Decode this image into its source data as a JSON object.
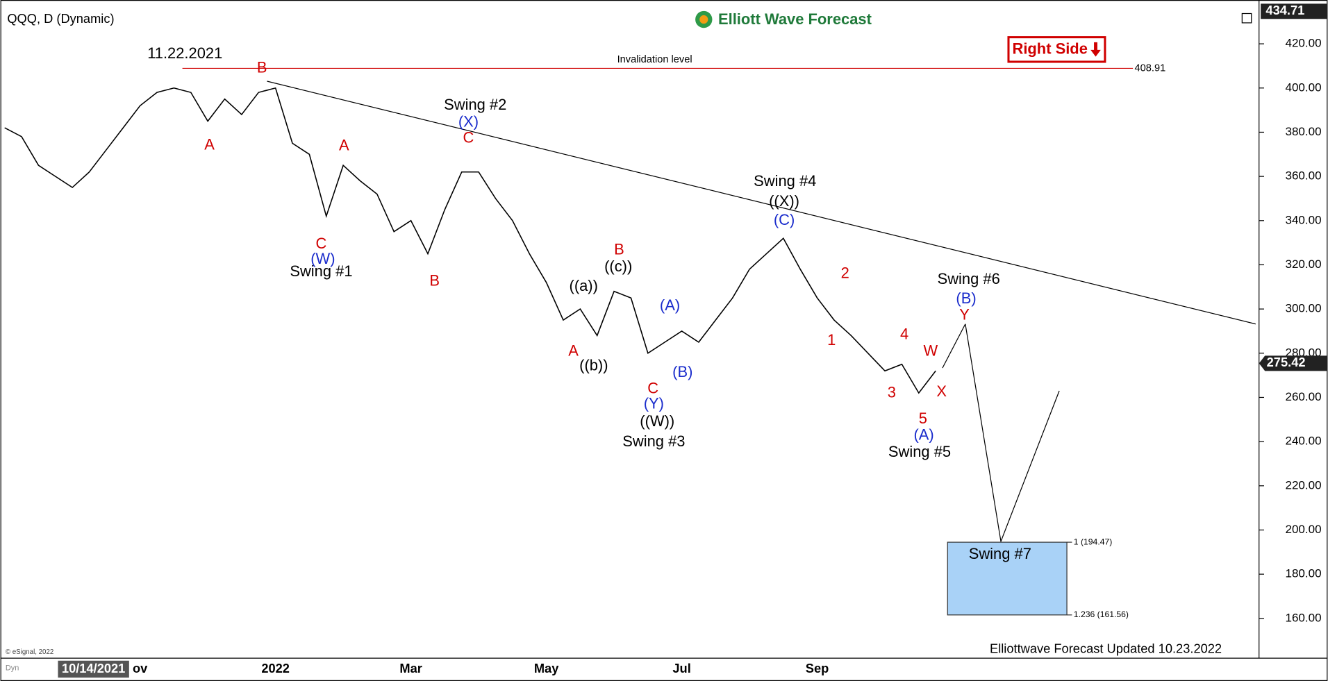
{
  "chart_data": {
    "type": "line",
    "title": "QQQ, D (Dynamic)",
    "brand": "Elliott Wave Forecast",
    "badge": "Right Side",
    "footer": "Elliottwave Forecast Updated 10.23.2022",
    "copyright": "© eSignal, 2022",
    "cursor_date": "10/14/2021",
    "corner_label": "Dyn",
    "top_price": {
      "value": 434.71,
      "label": "434.71"
    },
    "last_price": 275.42,
    "color": "#000000",
    "categories": [
      null,
      null,
      null,
      null,
      null,
      null,
      null,
      null,
      "ov",
      null,
      null,
      null,
      null,
      null,
      null,
      null,
      "2022",
      null,
      null,
      null,
      null,
      null,
      null,
      null,
      "Mar",
      null,
      null,
      null,
      null,
      null,
      null,
      null,
      "May",
      null,
      null,
      null,
      null,
      null,
      null,
      null,
      "Jul",
      null,
      null,
      null,
      null,
      null,
      null,
      null,
      "Sep",
      null,
      null,
      null,
      null,
      null,
      null,
      null
    ],
    "values": [
      382,
      378,
      365,
      360,
      355,
      362,
      372,
      382,
      392,
      398,
      400,
      398,
      385,
      395,
      388,
      398,
      400,
      375,
      370,
      342,
      365,
      358,
      352,
      335,
      340,
      325,
      345,
      362,
      362,
      350,
      340,
      325,
      312,
      295,
      300,
      288,
      308,
      305,
      280,
      285,
      290,
      285,
      295,
      305,
      318,
      325,
      332,
      318,
      305,
      295,
      288,
      280,
      272,
      275,
      262,
      272
    ],
    "ylim": [
      142,
      436
    ],
    "yticks": [
      {
        "value": 160,
        "label": "160.00"
      },
      {
        "value": 180,
        "label": "180.00"
      },
      {
        "value": 200,
        "label": "200.00"
      },
      {
        "value": 220,
        "label": "220.00"
      },
      {
        "value": 240,
        "label": "240.00"
      },
      {
        "value": 260,
        "label": "260.00"
      },
      {
        "value": 280,
        "label": "280.00"
      },
      {
        "value": 300,
        "label": "300.00"
      },
      {
        "value": 320,
        "label": "320.00"
      },
      {
        "value": 340,
        "label": "340.00"
      },
      {
        "value": 360,
        "label": "360.00"
      },
      {
        "value": 380,
        "label": "380.00"
      },
      {
        "value": 400,
        "label": "400.00"
      },
      {
        "value": 420,
        "label": "420.00"
      }
    ],
    "invalidation": {
      "label": "Invalidation level",
      "value": 408.91
    },
    "target_zone": [
      {
        "label": "1 (194.47)",
        "value": 194.47
      },
      {
        "label": "1.236 (161.56)",
        "value": 161.56
      }
    ],
    "annotations": [
      {
        "text": "11.22.2021",
        "color": "#000000"
      },
      {
        "text": "B",
        "color": "#d00000"
      },
      {
        "text": "A",
        "color": "#d00000"
      },
      {
        "text": "Swing #2",
        "color": "#000000"
      },
      {
        "text": "(X)",
        "color": "#1a2ccc"
      },
      {
        "text": "C",
        "color": "#d00000"
      },
      {
        "text": "A",
        "color": "#d00000"
      },
      {
        "text": "C",
        "color": "#d00000"
      },
      {
        "text": "(W)",
        "color": "#1a2ccc"
      },
      {
        "text": "Swing #1",
        "color": "#000000"
      },
      {
        "text": "B",
        "color": "#d00000"
      },
      {
        "text": "Swing #4",
        "color": "#000000"
      },
      {
        "text": "((X))",
        "color": "#000000"
      },
      {
        "text": "(C)",
        "color": "#1a2ccc"
      },
      {
        "text": "B",
        "color": "#d00000"
      },
      {
        "text": "((c))",
        "color": "#000000"
      },
      {
        "text": "((a))",
        "color": "#000000"
      },
      {
        "text": "A",
        "color": "#d00000"
      },
      {
        "text": "((b))",
        "color": "#000000"
      },
      {
        "text": "(A)",
        "color": "#1a2ccc"
      },
      {
        "text": "(B)",
        "color": "#1a2ccc"
      },
      {
        "text": "C",
        "color": "#d00000"
      },
      {
        "text": "(Y)",
        "color": "#1a2ccc"
      },
      {
        "text": "((W))",
        "color": "#000000"
      },
      {
        "text": "Swing #3",
        "color": "#000000"
      },
      {
        "text": "2",
        "color": "#d00000"
      },
      {
        "text": "1",
        "color": "#d00000"
      },
      {
        "text": "4",
        "color": "#d00000"
      },
      {
        "text": "3",
        "color": "#d00000"
      },
      {
        "text": "5",
        "color": "#d00000"
      },
      {
        "text": "(A)",
        "color": "#1a2ccc"
      },
      {
        "text": "Swing #5",
        "color": "#000000"
      },
      {
        "text": "W",
        "color": "#d00000"
      },
      {
        "text": "X",
        "color": "#d00000"
      },
      {
        "text": "Swing #6",
        "color": "#000000"
      },
      {
        "text": "(B)",
        "color": "#1a2ccc"
      },
      {
        "text": "Y",
        "color": "#d00000"
      },
      {
        "text": "Swing #7",
        "color": "#000000"
      }
    ]
  }
}
